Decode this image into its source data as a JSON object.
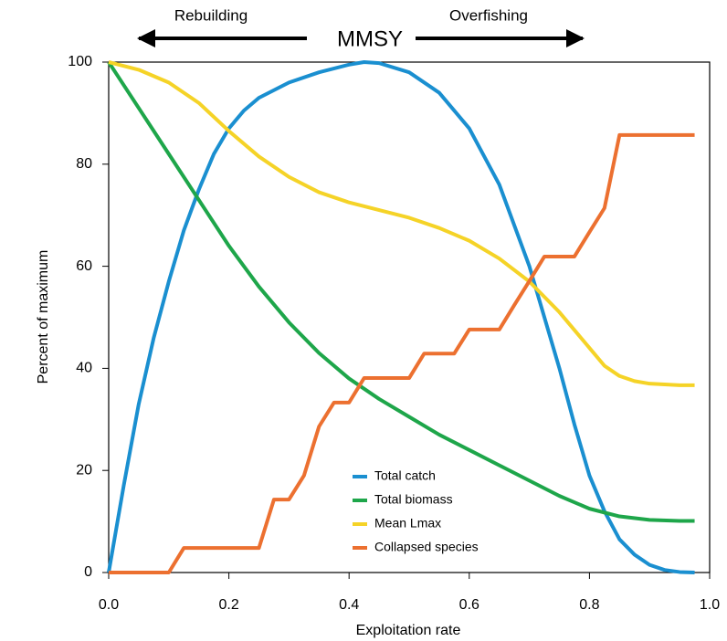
{
  "chart_data": {
    "type": "line",
    "xlabel": "Exploitation rate",
    "ylabel": "Percent of maximum",
    "annotations": [
      "Rebuilding",
      "MMSY",
      "Overfishing"
    ],
    "xlim": [
      0,
      1
    ],
    "ylim": [
      0,
      100
    ],
    "xticks": [
      {
        "value": 0,
        "label": "0.0"
      },
      0.2,
      0.4,
      0.6,
      0.8,
      {
        "value": 1,
        "label": "1.0"
      }
    ],
    "yticks": [
      0,
      20,
      40,
      60,
      80,
      100
    ],
    "grid": false,
    "legend": "lower center",
    "series": [
      {
        "name": "Total catch",
        "color": "#1a8fd0",
        "x": [
          0,
          0.025,
          0.05,
          0.075,
          0.1,
          0.125,
          0.15,
          0.175,
          0.2,
          0.225,
          0.25,
          0.3,
          0.35,
          0.4,
          0.425,
          0.45,
          0.5,
          0.55,
          0.6,
          0.65,
          0.7,
          0.75,
          0.775,
          0.8,
          0.825,
          0.85,
          0.875,
          0.9,
          0.925,
          0.95,
          0.975
        ],
        "values": [
          0,
          17,
          33,
          46,
          57,
          67,
          75,
          82,
          87,
          90.5,
          93,
          96,
          98,
          99.5,
          100,
          99.8,
          98,
          94,
          87,
          76,
          60,
          40,
          29,
          19,
          12,
          6.5,
          3.5,
          1.5,
          0.5,
          0.1,
          0
        ]
      },
      {
        "name": "Total biomass",
        "color": "#1ea64a",
        "x": [
          0,
          0.05,
          0.1,
          0.15,
          0.2,
          0.25,
          0.3,
          0.35,
          0.4,
          0.45,
          0.5,
          0.55,
          0.6,
          0.65,
          0.7,
          0.75,
          0.8,
          0.85,
          0.9,
          0.95,
          0.975
        ],
        "values": [
          100,
          91,
          82,
          73,
          64,
          56,
          49,
          43,
          38,
          34,
          30.5,
          27,
          24,
          21,
          18,
          15,
          12.5,
          11,
          10.3,
          10.1,
          10.1
        ]
      },
      {
        "name": "Mean Lmax",
        "color": "#f5d327",
        "x": [
          0,
          0.05,
          0.1,
          0.15,
          0.2,
          0.25,
          0.3,
          0.35,
          0.4,
          0.45,
          0.5,
          0.55,
          0.6,
          0.65,
          0.7,
          0.75,
          0.8,
          0.825,
          0.85,
          0.875,
          0.9,
          0.95,
          0.975
        ],
        "values": [
          100,
          98.5,
          96,
          92,
          86.5,
          81.5,
          77.5,
          74.5,
          72.5,
          71,
          69.5,
          67.5,
          65,
          61.5,
          57,
          51,
          44,
          40.5,
          38.5,
          37.5,
          37,
          36.7,
          36.7
        ]
      },
      {
        "name": "Collapsed species",
        "color": "#ec7030",
        "x": [
          0,
          0.1,
          0.125,
          0.25,
          0.275,
          0.3,
          0.325,
          0.35,
          0.375,
          0.4,
          0.425,
          0.5,
          0.525,
          0.575,
          0.6,
          0.65,
          0.675,
          0.7,
          0.725,
          0.775,
          0.8,
          0.825,
          0.85,
          0.975
        ],
        "values": [
          0,
          0,
          4.8,
          4.8,
          14.3,
          14.3,
          19,
          28.6,
          33.3,
          33.3,
          38.1,
          38.1,
          42.9,
          42.9,
          47.6,
          47.6,
          52.4,
          57.1,
          61.9,
          61.9,
          66.7,
          71.4,
          85.7,
          85.7
        ]
      }
    ]
  }
}
